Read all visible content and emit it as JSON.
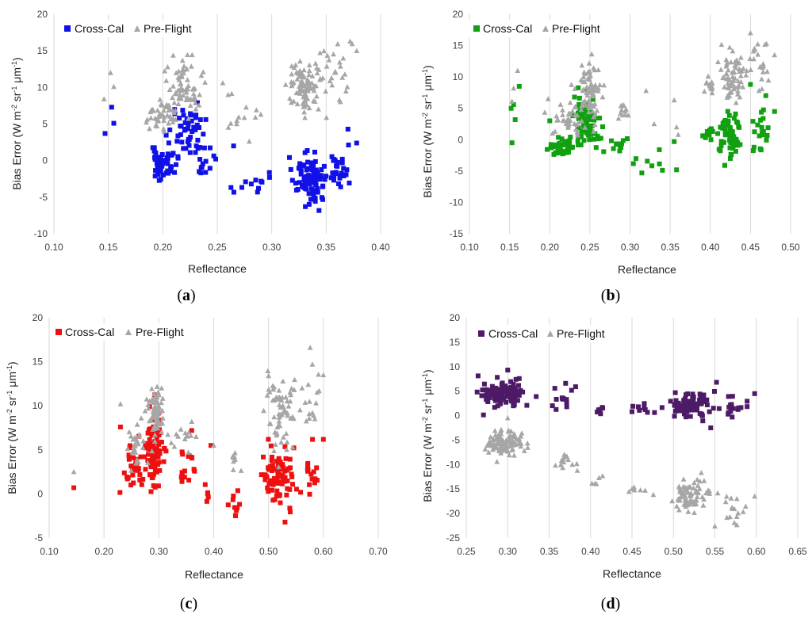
{
  "chart_data": [
    {
      "type": "scatter",
      "panel": "a",
      "caption_open": "(",
      "caption_letter": "a",
      "caption_close": ")",
      "xlabel": "Reflectance",
      "ylabel_main": "Bias Error (W m",
      "ylabel_sup1": "-2",
      "ylabel_mid1": " sr",
      "ylabel_sup2": "-1",
      "ylabel_mid2": " μm",
      "ylabel_sup3": "-1",
      "ylabel_end": ")",
      "xlim": [
        0.1,
        0.4
      ],
      "xticks": [
        "0.10",
        "0.15",
        "0.20",
        "0.25",
        "0.30",
        "0.35",
        "0.40"
      ],
      "ylim": [
        -10,
        20
      ],
      "yticks": [
        "-10",
        "-5",
        "0",
        "5",
        "10",
        "15",
        "20"
      ],
      "grid": "vertical",
      "legend_position": "top-left",
      "series": [
        {
          "name": "Cross-Cal",
          "marker": "square",
          "color": "#1010e8",
          "seed": 11,
          "clusters": [
            {
              "cx": 0.2,
              "cy": -0.5,
              "sx": 0.006,
              "sy": 1.0,
              "n": 50
            },
            {
              "cx": 0.222,
              "cy": 3.5,
              "sx": 0.008,
              "sy": 1.8,
              "n": 55
            },
            {
              "cx": 0.24,
              "cy": -1.0,
              "sx": 0.004,
              "sy": 0.8,
              "n": 10
            },
            {
              "cx": 0.275,
              "cy": -2.8,
              "sx": 0.01,
              "sy": 1.0,
              "n": 10
            },
            {
              "cx": 0.335,
              "cy": -2.5,
              "sx": 0.007,
              "sy": 1.7,
              "n": 90
            },
            {
              "cx": 0.362,
              "cy": -1.5,
              "sx": 0.005,
              "sy": 2.2,
              "n": 25
            }
          ],
          "points": [
            [
              0.147,
              3.7
            ],
            [
              0.153,
              7.3
            ],
            [
              0.155,
              5.1
            ],
            [
              0.298,
              -2.3
            ],
            [
              0.37,
              4.3
            ],
            [
              0.378,
              2.4
            ],
            [
              0.265,
              2.0
            ],
            [
              0.287,
              -4.3
            ]
          ]
        },
        {
          "name": "Pre-Flight",
          "marker": "triangle",
          "color": "#a6a6a6",
          "seed": 12,
          "clusters": [
            {
              "cx": 0.198,
              "cy": 6.2,
              "sx": 0.006,
              "sy": 0.9,
              "n": 45
            },
            {
              "cx": 0.22,
              "cy": 10.2,
              "sx": 0.008,
              "sy": 1.8,
              "n": 70
            },
            {
              "cx": 0.27,
              "cy": 7.0,
              "sx": 0.01,
              "sy": 1.6,
              "n": 10
            },
            {
              "cx": 0.33,
              "cy": 10.0,
              "sx": 0.007,
              "sy": 1.8,
              "n": 90
            },
            {
              "cx": 0.36,
              "cy": 12.0,
              "sx": 0.006,
              "sy": 2.5,
              "n": 25
            }
          ],
          "points": [
            [
              0.146,
              8.4
            ],
            [
              0.152,
              12.0
            ],
            [
              0.155,
              10.1
            ],
            [
              0.285,
              5.9
            ],
            [
              0.29,
              6.3
            ],
            [
              0.372,
              16.3
            ],
            [
              0.378,
              15.0
            ],
            [
              0.255,
              10.6
            ],
            [
              0.26,
              9.0
            ]
          ]
        }
      ]
    },
    {
      "type": "scatter",
      "panel": "b",
      "caption_open": "(",
      "caption_letter": "b",
      "caption_close": ")",
      "xlabel": "Reflectance",
      "ylabel_main": "Bias Error (W m",
      "ylabel_sup1": "-2",
      "ylabel_mid1": " sr",
      "ylabel_sup2": "-1",
      "ylabel_mid2": " μm",
      "ylabel_sup3": "-1",
      "ylabel_end": ")",
      "xlim": [
        0.1,
        0.5
      ],
      "xticks": [
        "0.10",
        "0.15",
        "0.20",
        "0.25",
        "0.30",
        "0.35",
        "0.40",
        "0.45",
        "0.50"
      ],
      "ylim": [
        -15,
        20
      ],
      "yticks": [
        "-15",
        "-10",
        "-5",
        "0",
        "5",
        "10",
        "15",
        "20"
      ],
      "grid": "vertical",
      "legend_position": "top-left",
      "series": [
        {
          "name": "Cross-Cal",
          "marker": "square",
          "color": "#10a010",
          "seed": 21,
          "clusters": [
            {
              "cx": 0.215,
              "cy": -1.3,
              "sx": 0.008,
              "sy": 0.9,
              "n": 40
            },
            {
              "cx": 0.245,
              "cy": 3.0,
              "sx": 0.009,
              "sy": 2.0,
              "n": 75
            },
            {
              "cx": 0.285,
              "cy": -0.8,
              "sx": 0.006,
              "sy": 0.7,
              "n": 12
            },
            {
              "cx": 0.33,
              "cy": -3.5,
              "sx": 0.012,
              "sy": 1.4,
              "n": 8
            },
            {
              "cx": 0.4,
              "cy": 1.0,
              "sx": 0.005,
              "sy": 0.6,
              "n": 15
            },
            {
              "cx": 0.425,
              "cy": 0.5,
              "sx": 0.008,
              "sy": 2.0,
              "n": 65
            },
            {
              "cx": 0.462,
              "cy": 1.5,
              "sx": 0.007,
              "sy": 2.5,
              "n": 20
            }
          ],
          "points": [
            [
              0.152,
              5.0
            ],
            [
              0.155,
              5.6
            ],
            [
              0.157,
              3.2
            ],
            [
              0.162,
              8.5
            ],
            [
              0.153,
              -0.5
            ],
            [
              0.2,
              3.0
            ],
            [
              0.355,
              -0.3
            ],
            [
              0.358,
              -4.8
            ],
            [
              0.48,
              4.5
            ],
            [
              0.45,
              8.8
            ]
          ]
        },
        {
          "name": "Pre-Flight",
          "marker": "triangle",
          "color": "#a6a6a6",
          "seed": 22,
          "clusters": [
            {
              "cx": 0.225,
              "cy": 3.5,
              "sx": 0.01,
              "sy": 1.2,
              "n": 40
            },
            {
              "cx": 0.248,
              "cy": 8.0,
              "sx": 0.008,
              "sy": 2.0,
              "n": 70
            },
            {
              "cx": 0.29,
              "cy": 4.8,
              "sx": 0.004,
              "sy": 0.6,
              "n": 12
            },
            {
              "cx": 0.4,
              "cy": 8.5,
              "sx": 0.005,
              "sy": 0.6,
              "n": 15
            },
            {
              "cx": 0.428,
              "cy": 10.0,
              "sx": 0.008,
              "sy": 2.0,
              "n": 65
            },
            {
              "cx": 0.462,
              "cy": 11.5,
              "sx": 0.007,
              "sy": 2.5,
              "n": 20
            }
          ],
          "points": [
            [
              0.155,
              8.2
            ],
            [
              0.16,
              11.0
            ],
            [
              0.153,
              6.1
            ],
            [
              0.198,
              6.5
            ],
            [
              0.32,
              7.8
            ],
            [
              0.33,
              2.5
            ],
            [
              0.355,
              6.3
            ],
            [
              0.358,
              2.0
            ],
            [
              0.36,
              0.8
            ],
            [
              0.45,
              17.0
            ],
            [
              0.48,
              13.5
            ],
            [
              0.47,
              15.3
            ]
          ]
        }
      ]
    },
    {
      "type": "scatter",
      "panel": "c",
      "caption_open": "(",
      "caption_letter": "c",
      "caption_close": ")",
      "xlabel": "Reflectance",
      "ylabel_main": "Bias Error (W m",
      "ylabel_sup1": "-2",
      "ylabel_mid1": " sr",
      "ylabel_sup2": "-1",
      "ylabel_mid2": " μm",
      "ylabel_sup3": "-1",
      "ylabel_end": ")",
      "xlim": [
        0.1,
        0.7
      ],
      "xticks": [
        "0.10",
        "0.20",
        "0.30",
        "0.40",
        "0.50",
        "0.60",
        "0.70"
      ],
      "ylim": [
        -5,
        20
      ],
      "yticks": [
        "-5",
        "0",
        "5",
        "10",
        "15",
        "20"
      ],
      "grid": "vertical",
      "legend_position": "top-left",
      "series": [
        {
          "name": "Cross-Cal",
          "marker": "square",
          "color": "#ee1010",
          "seed": 31,
          "clusters": [
            {
              "cx": 0.255,
              "cy": 3.0,
              "sx": 0.01,
              "sy": 1.2,
              "n": 30
            },
            {
              "cx": 0.29,
              "cy": 5.0,
              "sx": 0.008,
              "sy": 2.0,
              "n": 100
            },
            {
              "cx": 0.35,
              "cy": 2.5,
              "sx": 0.01,
              "sy": 1.5,
              "n": 15
            },
            {
              "cx": 0.39,
              "cy": 0.0,
              "sx": 0.005,
              "sy": 0.6,
              "n": 5
            },
            {
              "cx": 0.44,
              "cy": -1.5,
              "sx": 0.006,
              "sy": 0.8,
              "n": 10
            },
            {
              "cx": 0.52,
              "cy": 2.5,
              "sx": 0.015,
              "sy": 2.0,
              "n": 80
            },
            {
              "cx": 0.58,
              "cy": 2.0,
              "sx": 0.006,
              "sy": 1.5,
              "n": 15
            }
          ],
          "points": [
            [
              0.145,
              0.7
            ],
            [
              0.23,
              7.6
            ],
            [
              0.36,
              7.2
            ],
            [
              0.395,
              5.5
            ],
            [
              0.6,
              6.2
            ],
            [
              0.53,
              -3.2
            ]
          ]
        },
        {
          "name": "Pre-Flight",
          "marker": "triangle",
          "color": "#a6a6a6",
          "seed": 32,
          "clusters": [
            {
              "cx": 0.26,
              "cy": 5.5,
              "sx": 0.01,
              "sy": 1.0,
              "n": 25
            },
            {
              "cx": 0.293,
              "cy": 9.5,
              "sx": 0.008,
              "sy": 1.6,
              "n": 70
            },
            {
              "cx": 0.35,
              "cy": 6.5,
              "sx": 0.01,
              "sy": 1.2,
              "n": 12
            },
            {
              "cx": 0.44,
              "cy": 3.5,
              "sx": 0.006,
              "sy": 0.8,
              "n": 8
            },
            {
              "cx": 0.52,
              "cy": 9.5,
              "sx": 0.015,
              "sy": 2.0,
              "n": 70
            },
            {
              "cx": 0.58,
              "cy": 11.0,
              "sx": 0.006,
              "sy": 2.2,
              "n": 15
            }
          ],
          "points": [
            [
              0.145,
              2.5
            ],
            [
              0.23,
              10.2
            ],
            [
              0.305,
              12.0
            ],
            [
              0.36,
              8.2
            ],
            [
              0.4,
              5.5
            ],
            [
              0.6,
              13.5
            ],
            [
              0.58,
              14.7
            ],
            [
              0.5,
              13.4
            ]
          ]
        }
      ]
    },
    {
      "type": "scatter",
      "panel": "d",
      "caption_open": "(",
      "caption_letter": "d",
      "caption_close": ")",
      "xlabel": "Reflectance",
      "ylabel_main": "Bias Error (W m",
      "ylabel_sup1": "-2",
      "ylabel_mid1": " sr",
      "ylabel_sup2": "-1",
      "ylabel_mid2": " μm",
      "ylabel_sup3": "-1",
      "ylabel_end": ")",
      "xlim": [
        0.25,
        0.65
      ],
      "xticks": [
        "0.25",
        "0.30",
        "0.35",
        "0.40",
        "0.45",
        "0.50",
        "0.55",
        "0.60",
        "0.65"
      ],
      "ylim": [
        -25,
        20
      ],
      "yticks": [
        "-25",
        "-20",
        "-15",
        "-10",
        "-5",
        "0",
        "5",
        "10",
        "15",
        "20"
      ],
      "grid": "vertical",
      "legend_position": "top-left",
      "series": [
        {
          "name": "Cross-Cal",
          "marker": "square",
          "color": "#4d1a66",
          "seed": 41,
          "clusters": [
            {
              "cx": 0.295,
              "cy": 4.5,
              "sx": 0.012,
              "sy": 1.3,
              "n": 120
            },
            {
              "cx": 0.37,
              "cy": 3.5,
              "sx": 0.008,
              "sy": 1.5,
              "n": 15
            },
            {
              "cx": 0.41,
              "cy": 1.5,
              "sx": 0.004,
              "sy": 0.8,
              "n": 6
            },
            {
              "cx": 0.46,
              "cy": 1.5,
              "sx": 0.006,
              "sy": 0.6,
              "n": 8
            },
            {
              "cx": 0.52,
              "cy": 2.5,
              "sx": 0.012,
              "sy": 1.5,
              "n": 80
            },
            {
              "cx": 0.575,
              "cy": 1.5,
              "sx": 0.007,
              "sy": 1.8,
              "n": 15
            }
          ],
          "points": [
            [
              0.3,
              9.3
            ],
            [
              0.31,
              7.4
            ],
            [
              0.545,
              -2.5
            ],
            [
              0.598,
              4.5
            ],
            [
              0.552,
              6.8
            ],
            [
              0.45,
              0.8
            ]
          ]
        },
        {
          "name": "Pre-Flight",
          "marker": "triangle",
          "color": "#a6a6a6",
          "seed": 42,
          "clusters": [
            {
              "cx": 0.295,
              "cy": -5.5,
              "sx": 0.012,
              "sy": 1.2,
              "n": 100
            },
            {
              "cx": 0.37,
              "cy": -9.5,
              "sx": 0.007,
              "sy": 1.0,
              "n": 15
            },
            {
              "cx": 0.41,
              "cy": -13.0,
              "sx": 0.004,
              "sy": 0.8,
              "n": 5
            },
            {
              "cx": 0.46,
              "cy": -15.0,
              "sx": 0.006,
              "sy": 0.5,
              "n": 6
            },
            {
              "cx": 0.52,
              "cy": -16.0,
              "sx": 0.012,
              "sy": 1.5,
              "n": 75
            },
            {
              "cx": 0.575,
              "cy": -19.5,
              "sx": 0.007,
              "sy": 1.5,
              "n": 15
            }
          ],
          "points": [
            [
              0.3,
              -0.5
            ],
            [
              0.55,
              -22.6
            ],
            [
              0.598,
              -16.5
            ],
            [
              0.45,
              -15.0
            ]
          ]
        }
      ]
    }
  ]
}
